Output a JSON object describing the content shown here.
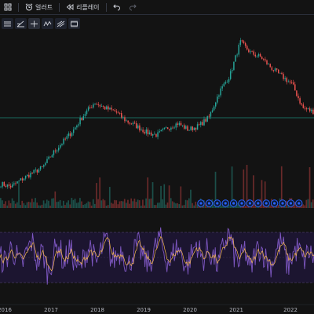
{
  "toolbar": {
    "alert_label": "얼러트",
    "replay_label": "리플레이"
  },
  "drawing_tools": [
    "horizontal-lines-icon",
    "trend-angle-icon",
    "crosshair-icon",
    "zigzag-icon",
    "multi-line-icon",
    "rectangle-icon"
  ],
  "colors": {
    "background": "#131313",
    "price_up": "#26a69a",
    "price_down": "#ef5350",
    "oscillator": "#7e57c2",
    "signal": "#f5b74e",
    "horizontal_level": "#1b8a79",
    "event_marker": "#2962ff"
  },
  "chart_data": [
    {
      "type": "line",
      "series": [
        {
          "x": [
            "2015-11",
            "2016-02",
            "2016-05",
            "2016-08",
            "2016-11",
            "2017-02",
            "2017-05",
            "2017-08",
            "2017-11",
            "2018-01",
            "2018-03",
            "2018-06",
            "2018-09",
            "2018-12",
            "2019-03",
            "2019-06",
            "2019-09",
            "2019-12",
            "2020-03",
            "2020-06",
            "2020-08",
            "2020-10",
            "2020-12",
            "2021-01",
            "2021-03",
            "2021-06",
            "2021-09",
            "2021-12",
            "2022-03",
            "2022-06",
            "2022-08"
          ],
          "values": [
            48,
            45,
            53,
            60,
            66,
            82,
            95,
            108,
            125,
            138,
            132,
            128,
            118,
            112,
            105,
            102,
            110,
            115,
            108,
            112,
            122,
            150,
            168,
            205,
            193,
            188,
            176,
            167,
            158,
            132,
            128
          ]
        }
      ]
    },
    {
      "type": "bar",
      "title": "",
      "events": 13
    },
    {
      "type": "line",
      "series": [
        {
          "values": [
            52,
            48,
            63,
            55,
            42,
            58,
            70,
            47,
            60,
            35,
            55,
            68,
            45,
            62,
            50,
            38,
            57,
            65,
            44,
            60,
            72,
            48,
            55,
            62,
            40,
            58,
            66,
            51,
            45,
            60,
            75,
            53,
            47,
            64,
            58,
            41,
            56,
            69,
            48,
            61,
            54,
            43,
            66,
            79,
            55,
            46,
            62,
            37,
            58,
            64,
            50,
            45,
            61,
            70,
            42,
            56,
            63,
            48,
            59,
            52
          ]
        }
      ]
    }
  ],
  "x_axis_labels": [
    "2016",
    "2017",
    "2018",
    "2019",
    "2020",
    "2021",
    "2022"
  ]
}
